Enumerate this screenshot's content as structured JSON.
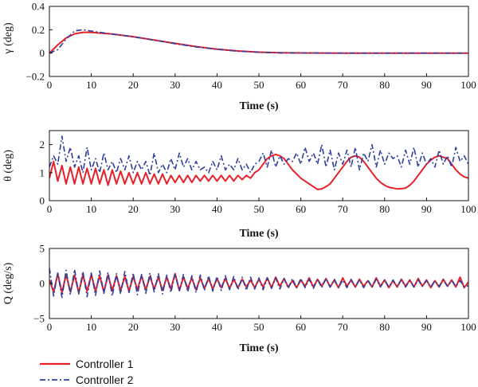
{
  "colors": {
    "controller1": "#e8202a",
    "controller2": "#2b3fa0"
  },
  "legend": {
    "items": [
      "Controller 1",
      "Controller 2"
    ]
  },
  "chart_data": [
    {
      "type": "line",
      "ylabel": "γ (deg)",
      "xlabel": "Time (s)",
      "xlim": [
        0,
        100
      ],
      "ylim": [
        -0.2,
        0.4
      ],
      "xticks": [
        0,
        10,
        20,
        30,
        40,
        50,
        60,
        70,
        80,
        90,
        100
      ],
      "yticks": [
        -0.2,
        0,
        0.2,
        0.4
      ],
      "ytick_labels": [
        "−0.2",
        "0",
        "0.2",
        "0.4"
      ],
      "series": [
        {
          "name": "Controller 1",
          "x": [
            0,
            2,
            4,
            6,
            8,
            10,
            15,
            20,
            25,
            30,
            35,
            40,
            45,
            50,
            55,
            60,
            70,
            80,
            90,
            100
          ],
          "values": [
            0.0,
            0.07,
            0.13,
            0.165,
            0.178,
            0.178,
            0.163,
            0.14,
            0.112,
            0.083,
            0.056,
            0.034,
            0.018,
            0.008,
            0.003,
            0.001,
            0,
            0,
            0,
            0
          ]
        },
        {
          "name": "Controller 2",
          "x": [
            0,
            2,
            4,
            6,
            8,
            10,
            15,
            20,
            25,
            30,
            35,
            40,
            45,
            50,
            55,
            60,
            70,
            80,
            90,
            100
          ],
          "values": [
            0.0,
            0.03,
            0.12,
            0.19,
            0.2,
            0.188,
            0.163,
            0.14,
            0.11,
            0.08,
            0.053,
            0.032,
            0.016,
            0.007,
            0.002,
            0.001,
            0,
            0,
            0,
            0
          ]
        }
      ]
    },
    {
      "type": "line",
      "ylabel": "θ (deg)",
      "xlabel": "Time (s)",
      "xlim": [
        0,
        100
      ],
      "ylim": [
        0,
        2.5
      ],
      "xticks": [
        0,
        10,
        20,
        30,
        40,
        50,
        60,
        70,
        80,
        90,
        100
      ],
      "yticks": [
        0,
        1,
        2
      ],
      "ytick_labels": [
        "0",
        "1",
        "2"
      ],
      "series": [
        {
          "name": "Controller 1",
          "x": [
            0,
            1,
            2,
            3,
            4,
            5,
            6,
            7,
            8,
            9,
            10,
            11,
            12,
            13,
            14,
            15,
            16,
            17,
            18,
            19,
            20,
            21,
            22,
            23,
            24,
            25,
            26,
            27,
            28,
            29,
            30,
            31,
            32,
            33,
            34,
            35,
            36,
            37,
            38,
            39,
            40,
            41,
            42,
            43,
            44,
            45,
            46,
            47,
            48,
            49,
            50,
            51,
            52,
            53,
            54,
            55,
            56,
            57,
            58,
            59,
            60,
            61,
            62,
            63,
            64,
            65,
            66,
            67,
            68,
            69,
            70,
            71,
            72,
            73,
            74,
            75,
            76,
            77,
            78,
            79,
            80,
            81,
            82,
            83,
            84,
            85,
            86,
            87,
            88,
            89,
            90,
            91,
            92,
            93,
            94,
            95,
            96,
            97,
            98,
            99,
            100
          ],
          "values": [
            0.8,
            1.4,
            0.7,
            1.25,
            0.6,
            1.2,
            0.6,
            1.2,
            0.6,
            1.15,
            0.6,
            1.15,
            0.6,
            1.1,
            0.55,
            1.1,
            0.6,
            1.05,
            0.6,
            1.0,
            0.6,
            1.0,
            0.6,
            1.0,
            0.6,
            0.95,
            0.6,
            0.95,
            0.6,
            0.9,
            0.65,
            0.9,
            0.65,
            0.9,
            0.65,
            0.9,
            0.7,
            0.9,
            0.7,
            0.9,
            0.7,
            0.9,
            0.7,
            0.9,
            0.7,
            0.9,
            0.75,
            0.9,
            0.8,
            1.0,
            1.1,
            1.3,
            1.5,
            1.6,
            1.65,
            1.6,
            1.5,
            1.3,
            1.1,
            0.95,
            0.8,
            0.7,
            0.6,
            0.5,
            0.4,
            0.42,
            0.5,
            0.6,
            0.8,
            1.0,
            1.2,
            1.4,
            1.55,
            1.6,
            1.55,
            1.4,
            1.2,
            1.0,
            0.8,
            0.65,
            0.55,
            0.48,
            0.45,
            0.42,
            0.43,
            0.45,
            0.55,
            0.7,
            0.9,
            1.1,
            1.3,
            1.45,
            1.55,
            1.6,
            1.55,
            1.5,
            1.3,
            1.1,
            0.95,
            0.85,
            0.8
          ]
        },
        {
          "name": "Controller 2",
          "x": [
            0,
            1,
            2,
            3,
            4,
            5,
            6,
            7,
            8,
            9,
            10,
            11,
            12,
            13,
            14,
            15,
            16,
            17,
            18,
            19,
            20,
            21,
            22,
            23,
            24,
            25,
            26,
            27,
            28,
            29,
            30,
            31,
            32,
            33,
            34,
            35,
            36,
            37,
            38,
            39,
            40,
            41,
            42,
            43,
            44,
            45,
            46,
            47,
            48,
            49,
            50,
            51,
            52,
            53,
            54,
            55,
            56,
            57,
            58,
            59,
            60,
            61,
            62,
            63,
            64,
            65,
            66,
            67,
            68,
            69,
            70,
            71,
            72,
            73,
            74,
            75,
            76,
            77,
            78,
            79,
            80,
            81,
            82,
            83,
            84,
            85,
            86,
            87,
            88,
            89,
            90,
            91,
            92,
            93,
            94,
            95,
            96,
            97,
            98,
            99,
            100
          ],
          "values": [
            1.2,
            1.6,
            1.3,
            2.3,
            1.4,
            1.9,
            1.2,
            1.6,
            1.0,
            1.9,
            1.1,
            1.5,
            1.0,
            1.7,
            1.1,
            1.4,
            1.0,
            1.5,
            1.1,
            1.6,
            1.0,
            1.4,
            1.1,
            1.4,
            0.9,
            1.7,
            1.0,
            1.3,
            1.0,
            1.5,
            1.1,
            1.7,
            1.2,
            1.5,
            1.1,
            1.4,
            1.1,
            1.2,
            1.0,
            1.4,
            1.1,
            1.6,
            1.1,
            1.3,
            1.1,
            1.5,
            1.1,
            1.3,
            1.0,
            1.3,
            1.4,
            1.7,
            1.2,
            1.8,
            1.2,
            1.6,
            1.3,
            1.5,
            1.4,
            1.7,
            1.3,
            1.9,
            1.4,
            1.7,
            1.3,
            2.0,
            1.2,
            1.8,
            1.1,
            1.7,
            1.3,
            1.8,
            1.2,
            1.9,
            1.1,
            1.7,
            1.4,
            2.0,
            1.2,
            1.8,
            1.3,
            1.7,
            1.5,
            1.6,
            1.2,
            1.8,
            1.3,
            1.9,
            1.2,
            1.7,
            1.3,
            1.5,
            1.2,
            1.8,
            1.3,
            1.6,
            1.2,
            1.9,
            1.4,
            1.6,
            1.3
          ]
        }
      ]
    },
    {
      "type": "line",
      "ylabel": "Q (deg/s)",
      "xlabel": "Time (s)",
      "xlim": [
        0,
        100
      ],
      "ylim": [
        -5,
        5
      ],
      "xticks": [
        0,
        10,
        20,
        30,
        40,
        50,
        60,
        70,
        80,
        90,
        100
      ],
      "yticks": [
        -5,
        0,
        5
      ],
      "ytick_labels": [
        "−5",
        "0",
        "5"
      ],
      "series": [
        {
          "name": "Controller 1",
          "x": [
            0,
            1,
            2,
            3,
            4,
            5,
            6,
            7,
            8,
            9,
            10,
            11,
            12,
            13,
            14,
            15,
            16,
            17,
            18,
            19,
            20,
            21,
            22,
            23,
            24,
            25,
            26,
            27,
            28,
            29,
            30,
            31,
            32,
            33,
            34,
            35,
            36,
            37,
            38,
            39,
            40,
            41,
            42,
            43,
            44,
            45,
            46,
            47,
            48,
            49,
            50,
            51,
            52,
            53,
            54,
            55,
            56,
            57,
            58,
            59,
            60,
            61,
            62,
            63,
            64,
            65,
            66,
            67,
            68,
            69,
            70,
            71,
            72,
            73,
            74,
            75,
            76,
            77,
            78,
            79,
            80,
            81,
            82,
            83,
            84,
            85,
            86,
            87,
            88,
            89,
            90,
            91,
            92,
            93,
            94,
            95,
            96,
            97,
            98,
            99,
            100
          ],
          "values": [
            0.5,
            -1.2,
            1.4,
            -1.3,
            1.3,
            -1.2,
            1.2,
            -1.3,
            1.2,
            -1.1,
            1.3,
            -1.1,
            1.1,
            -1.2,
            1.2,
            -1.0,
            1.1,
            -1.0,
            1.0,
            -1.1,
            1.0,
            -0.9,
            1.1,
            -0.9,
            1.0,
            -0.8,
            0.9,
            -1.0,
            0.9,
            -0.8,
            1.4,
            -1.0,
            0.9,
            -0.7,
            0.8,
            -0.9,
            0.8,
            -0.7,
            0.7,
            -0.8,
            0.7,
            -0.6,
            0.7,
            -0.7,
            0.6,
            -0.6,
            0.6,
            -0.5,
            0.5,
            -0.6,
            0.6,
            -0.5,
            0.8,
            -0.6,
            0.9,
            -0.4,
            0.7,
            -0.5,
            0.4,
            -0.6,
            0.5,
            -0.4,
            0.8,
            -0.5,
            0.6,
            -0.4,
            0.7,
            -0.5,
            0.5,
            -0.6,
            0.8,
            -0.4,
            0.5,
            -0.5,
            0.6,
            -0.4,
            0.4,
            -0.5,
            0.8,
            -0.4,
            0.5,
            -0.6,
            0.4,
            -0.5,
            0.6,
            -0.4,
            0.5,
            -0.5,
            0.7,
            -0.4,
            0.5,
            -0.6,
            0.4,
            -0.5,
            0.6,
            -0.4,
            0.5,
            -0.5,
            0.9,
            -0.6,
            0.2
          ]
        },
        {
          "name": "Controller 2",
          "x": [
            0,
            1,
            2,
            3,
            4,
            5,
            6,
            7,
            8,
            9,
            10,
            11,
            12,
            13,
            14,
            15,
            16,
            17,
            18,
            19,
            20,
            21,
            22,
            23,
            24,
            25,
            26,
            27,
            28,
            29,
            30,
            31,
            32,
            33,
            34,
            35,
            36,
            37,
            38,
            39,
            40,
            41,
            42,
            43,
            44,
            45,
            46,
            47,
            48,
            49,
            50,
            51,
            52,
            53,
            54,
            55,
            56,
            57,
            58,
            59,
            60,
            61,
            62,
            63,
            64,
            65,
            66,
            67,
            68,
            69,
            70,
            71,
            72,
            73,
            74,
            75,
            76,
            77,
            78,
            79,
            80,
            81,
            82,
            83,
            84,
            85,
            86,
            87,
            88,
            89,
            90,
            91,
            92,
            93,
            94,
            95,
            96,
            97,
            98,
            99,
            100
          ],
          "values": [
            2.2,
            -1.8,
            1.5,
            -2.0,
            1.9,
            -1.6,
            2.0,
            -1.5,
            1.7,
            -1.9,
            1.5,
            -1.7,
            1.8,
            -1.4,
            1.6,
            -1.8,
            1.4,
            -1.5,
            1.7,
            -1.3,
            1.5,
            -1.6,
            1.3,
            -1.4,
            1.5,
            -1.2,
            1.4,
            -1.5,
            1.2,
            -1.3,
            1.4,
            -1.1,
            1.3,
            -1.2,
            1.1,
            -1.3,
            1.2,
            -1.0,
            1.1,
            -1.1,
            1.0,
            -1.0,
            1.1,
            -0.9,
            1.0,
            -0.9,
            0.9,
            -1.0,
            0.9,
            -0.8,
            0.8,
            -0.9,
            0.8,
            -0.7,
            0.8,
            -0.8,
            0.7,
            -0.7,
            0.7,
            -0.6,
            0.7,
            -0.6,
            0.6,
            -0.7,
            0.6,
            -0.6,
            0.7,
            -0.5,
            0.6,
            -0.6,
            0.5,
            -0.6,
            0.6,
            -0.5,
            0.5,
            -0.6,
            0.5,
            -0.5,
            0.6,
            -0.5,
            0.5,
            -0.5,
            0.5,
            -0.4,
            0.5,
            -0.5,
            0.4,
            -0.5,
            0.5,
            -0.4,
            0.4,
            -0.5,
            0.4,
            -0.4,
            0.5,
            -0.4,
            0.4,
            -0.4,
            0.4,
            -0.5,
            -0.3
          ]
        }
      ]
    }
  ]
}
